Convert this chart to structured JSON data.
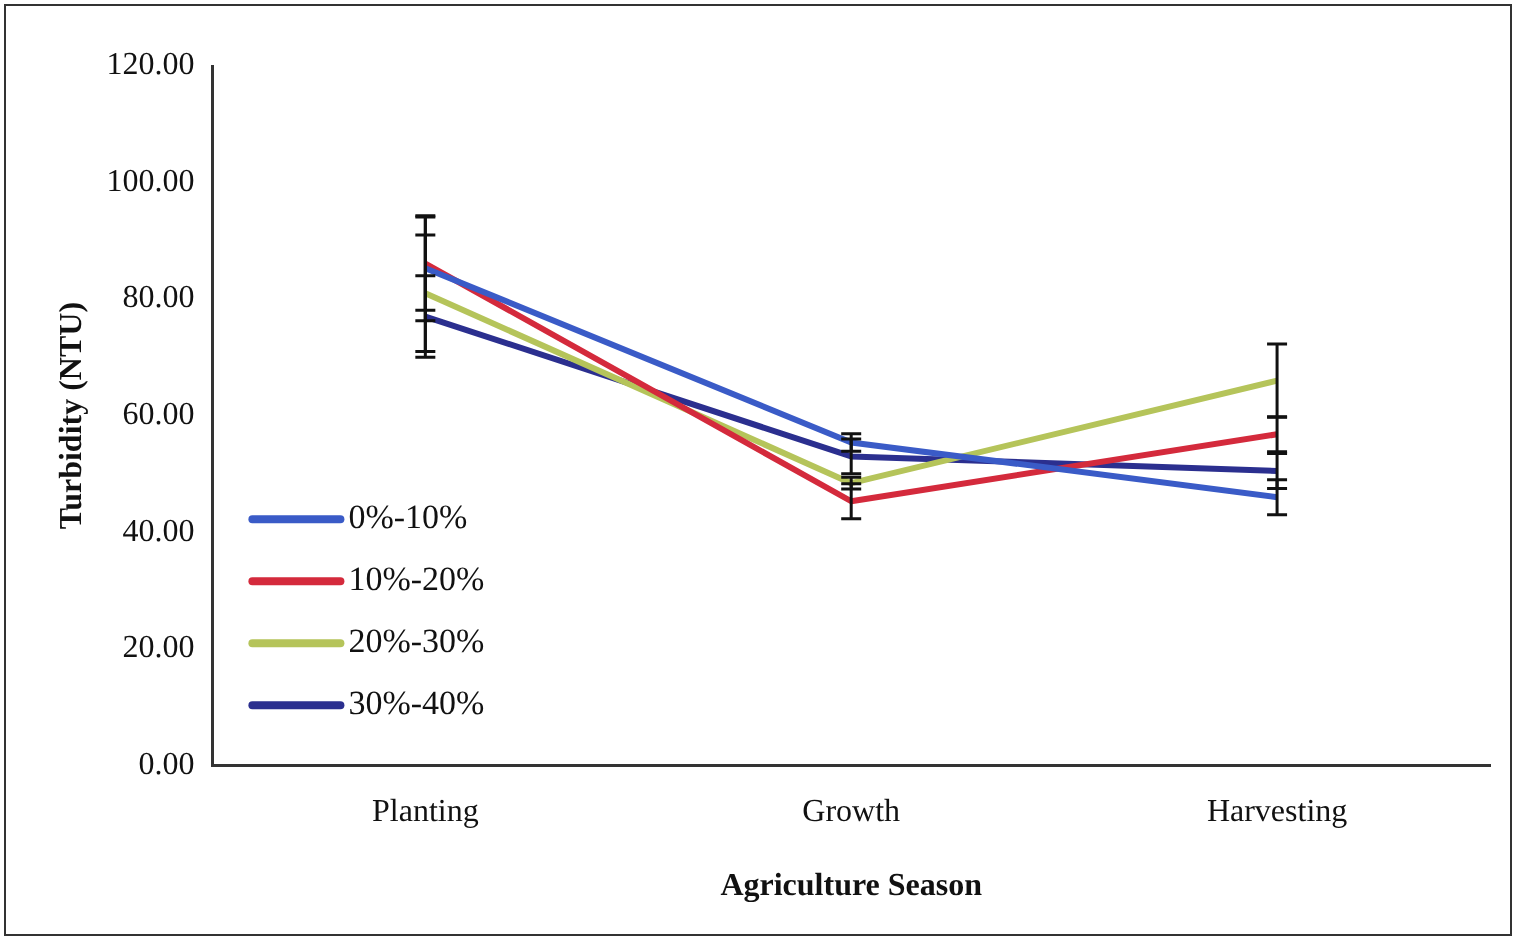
{
  "chart_data": {
    "type": "line",
    "xlabel": "Agriculture Season",
    "ylabel": "Turbidity (NTU)",
    "categories": [
      "Planting",
      "Growth",
      "Harvesting"
    ],
    "series": [
      {
        "name": "0%-10%",
        "color": "#3a5bc7",
        "values": [
          85.3,
          55.4,
          46
        ],
        "errors": [
          9,
          1.5,
          3
        ]
      },
      {
        "name": "10%-20%",
        "color": "#d42a3c",
        "values": [
          86.1,
          45.3,
          56.8
        ],
        "errors": [
          8,
          3,
          3
        ]
      },
      {
        "name": "20%-30%",
        "color": "#b5c45a",
        "values": [
          81,
          48.4,
          66
        ],
        "errors": [
          10,
          1,
          6.3
        ]
      },
      {
        "name": "30%-40%",
        "color": "#2b2f8f",
        "values": [
          77,
          53,
          50.5
        ],
        "errors": [
          7,
          3,
          3
        ]
      }
    ],
    "ylim": [
      0,
      120
    ],
    "yticks": [
      {
        "value": 0,
        "label": "0.00"
      },
      {
        "value": 20,
        "label": "20.00"
      },
      {
        "value": 40,
        "label": "40.00"
      },
      {
        "value": 60,
        "label": "60.00"
      },
      {
        "value": 80,
        "label": "80.00"
      },
      {
        "value": 100,
        "label": "100.00"
      },
      {
        "value": 120,
        "label": "120.00"
      }
    ],
    "grid": false,
    "legend": "bottom left",
    "marker": "none",
    "line_style": "solid"
  }
}
